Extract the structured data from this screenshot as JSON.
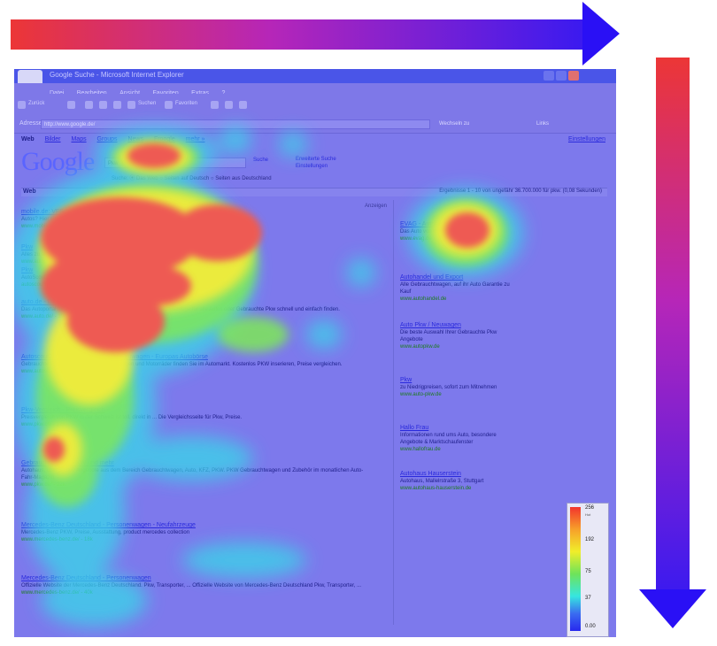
{
  "arrows": {
    "horizontal": {
      "from_color": "#ec3636",
      "to_color": "#2a10f5"
    },
    "vertical": {
      "from_color": "#ec3636",
      "to_color": "#2a10f5"
    }
  },
  "browser": {
    "title": "Google Suche - Microsoft Internet Explorer",
    "menu": [
      "Datei",
      "Bearbeiten",
      "Ansicht",
      "Favoriten",
      "Extras",
      "?"
    ],
    "toolbar": {
      "back": "Zurück",
      "search": "Suchen",
      "favorites": "Favoriten"
    },
    "address": {
      "label": "Adresse",
      "value": "http://www.google.de/",
      "go": "Wechseln zu",
      "links": "Links"
    }
  },
  "google": {
    "nav": [
      "Web",
      "Bilder",
      "Maps",
      "Groups",
      "News",
      "Froogle",
      "mehr »"
    ],
    "prefs": "Einstellungen",
    "logo": "Google",
    "query": "Pkw",
    "search_button": "Suche",
    "advanced": [
      "Erweiterte Suche",
      "Einstellungen"
    ],
    "scope": "Suche: ⦿ Das Web  ○ Seiten auf Deutsch  ○ Seiten aus Deutschland",
    "results_label": "Web",
    "results_stats": "Ergebnisse 1 - 10 von ungefähr 36.700.000 für pkw. (0,08 Sekunden)",
    "ads_label": "Anzeigen"
  },
  "results": [
    {
      "title": "mobile.de: VFS",
      "snippet": "Autos? Hier sind Sie richtig: Große Auswahl, Gebraucht & Neufahrzeuge",
      "url": "www.mobile.de"
    },
    {
      "title": "Pkw",
      "snippet": "Alles zu aktuellen Modellen & mehr - Ihre Pkw Infoseite",
      "url": "www.auto.de"
    },
    {
      "title": "Pkw",
      "snippet": "AutoScout24: Europas Automarkt für Neu- & Gebrauchtwagen",
      "url": "autoscout24.de"
    },
    {
      "title": "auto.de - Das Autoportal für Deutschland ...",
      "snippet": "Das Autoportal für Deutschland mit Gebrauchtwagen und Neufahrzeuge für alle Autos oder Gebrauchte Pkw schnell und einfach finden.",
      "url": "www.auto.de/ - 19k"
    },
    {
      "title": "Autoscout24: Gebrauchtwagen und Neuwagen - Europas Autobörse",
      "snippet": "Gebrauchte PKW, Gebrauchtwagen, Neuwagen und Motorräder finden Sie im Automarkt. Kostenlos PKW inserieren, Preise vergleichen.",
      "url": "www.autoscout24.de/ - 41k"
    },
    {
      "title": "Pkw-Vergleich - Preisvergleich",
      "snippet": "Preisvergleich von PKW in der Schweiz ist toll, direkt in ... Die Vergleichsseite für Pkw, Preise.",
      "url": "www.pkw.ch/ - 12k"
    },
    {
      "title": "Gebrauchtwagen, PKW und mehr",
      "snippet": "Autohaus, über 50.000 Angebote aus dem Bereich Gebrauchtwagen, Auto, KFZ, PKW. PKW Gebrauchtwagen und Zubehör im monatlichen Auto-Fahr-Magazin.",
      "url": "www.pkw.de/ - 22k"
    },
    {
      "title": "Mercedes-Benz Deutschland - Personenwagen - Neufahrzeuge",
      "snippet": "Mercedes-Benz PKW, Preise, Ausstattung, product mercedes collection",
      "url": "www.mercedes-benz.de/ - 18k"
    },
    {
      "title": "Mercedes-Benz Deutschland - Personenwagen",
      "snippet": "Offizielle Website der Mercedes-Benz Deutschland. Pkw, Transporter, ... Offizielle Website von Mercedes-Benz Deutschland Pkw, Transporter, ...",
      "url": "www.mercedes-benz.de/ - 40k"
    }
  ],
  "ads": [
    {
      "title": "EVAG - Autohandelsbörse",
      "snippet": "Das Auto von Ihrem Autohaus",
      "url": "www.evag.de"
    },
    {
      "title": "Autohandel und Export",
      "snippet": "Alle Gebrauchtwagen, auf ihr Auto Garantie zu Kauf",
      "url": "www.autohandel.de"
    },
    {
      "title": "Auto Pkw / Neuwagen",
      "snippet": "Die beste Auswahl Ihrer Gebrauchte Pkw Angebote",
      "url": "www.autopkw.de"
    },
    {
      "title": "Pkw",
      "snippet": "zu Niedrigpreisen, sofort zum Mitnehmen",
      "url": "www.auto-pkw.de"
    },
    {
      "title": "Hallo Frau",
      "snippet": "Informationen rund ums Auto, besondere Angebote & Marktschaufenster",
      "url": "www.hallofrau.de"
    },
    {
      "title": "Autohaus Hauserstein",
      "snippet": "Autohaus, Mallelrstraße 3, Stuttgart",
      "url": "www.autohaus-hauserstein.de"
    }
  ],
  "legend": {
    "labels": [
      "256",
      "Hot",
      "192",
      "75",
      "37",
      "0.00"
    ],
    "colors": [
      "#f2342c",
      "#f7a02a",
      "#f0ee2a",
      "#6ee35a",
      "#36e6e0",
      "#2828ee"
    ]
  }
}
